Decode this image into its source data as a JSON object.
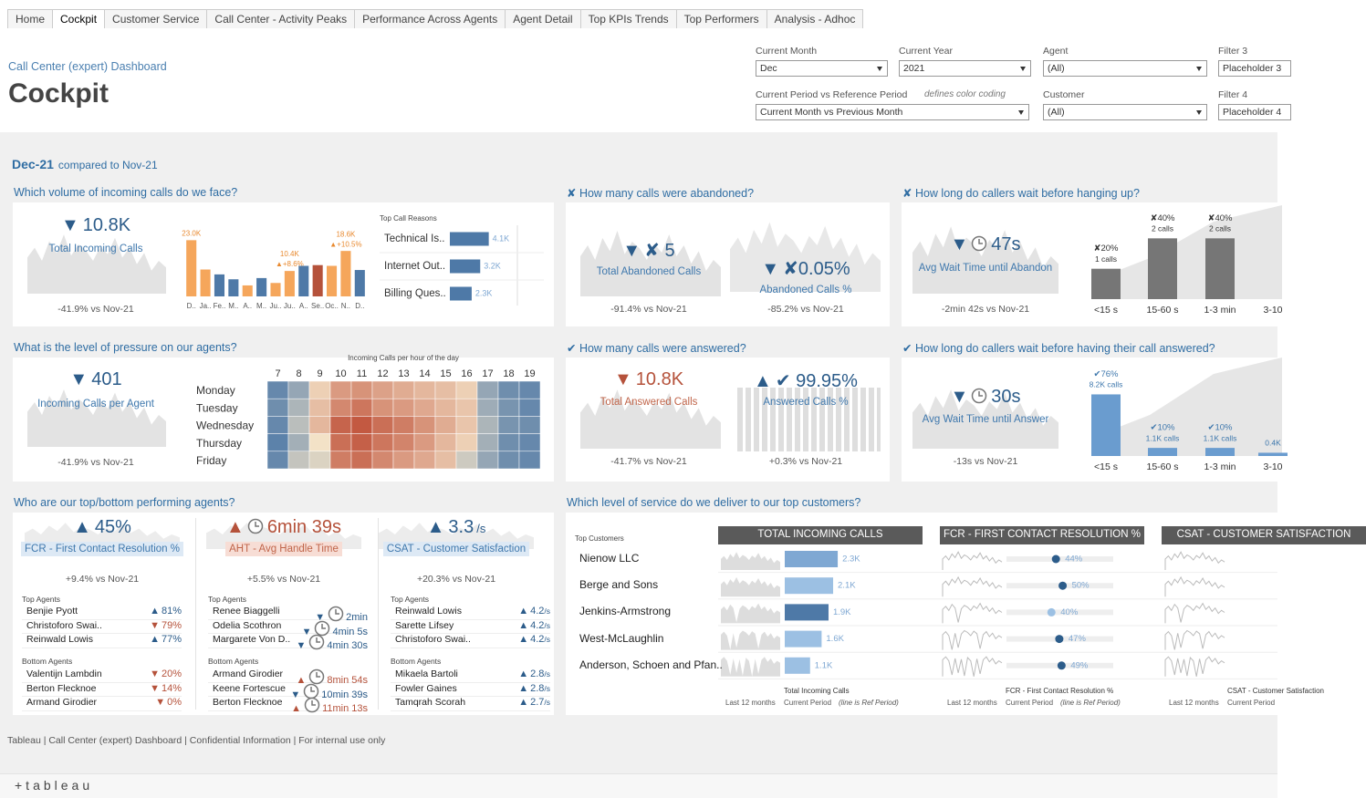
{
  "tabs": [
    "Home",
    "Cockpit",
    "Customer Service",
    "Call Center - Activity Peaks",
    "Performance Across Agents",
    "Agent Detail",
    "Top KPIs Trends",
    "Top Performers",
    "Analysis - Adhoc"
  ],
  "active_tab": 1,
  "header": {
    "subtitle": "Call Center (expert) Dashboard",
    "title": "Cockpit"
  },
  "filters": [
    {
      "label": "Current Month",
      "value": "Dec"
    },
    {
      "label": "Current Year",
      "value": "2021"
    },
    {
      "label": "Agent",
      "value": "(All)"
    },
    {
      "label": "Filter 3",
      "value": "Placeholder 3"
    },
    {
      "label": "Current Period vs Reference Period",
      "value": "Current Month vs Previous Month",
      "note": "defines color coding"
    },
    {
      "label": "Customer",
      "value": "(All)"
    },
    {
      "label": "Filter 4",
      "value": "Placeholder 4"
    }
  ],
  "period": {
    "current": "Dec-21",
    "compared": "compared to Nov-21"
  },
  "panels": {
    "volume": {
      "title": "Which volume of incoming calls do we face?",
      "kpi": {
        "arrow": "▼",
        "value": "10.8K",
        "label": "Total Incoming Calls",
        "delta": "-41.9% vs Nov-21",
        "color": "#2c5c8a"
      },
      "monthly": {
        "type": "bar",
        "categories": [
          "D..",
          "Ja..",
          "Fe..",
          "M..",
          "A..",
          "M..",
          "Ju..",
          "Ju..",
          "A..",
          "Se..",
          "Oc..",
          "N..",
          "D.."
        ],
        "values": [
          23000,
          11000,
          9000,
          7000,
          4500,
          7500,
          5500,
          10400,
          12500,
          12800,
          12500,
          18600,
          10800
        ],
        "value_labels": [
          "23.0K",
          null,
          null,
          null,
          null,
          null,
          null,
          "10.4K",
          null,
          null,
          null,
          "18.6K",
          null
        ],
        "change_labels": [
          null,
          null,
          null,
          null,
          null,
          null,
          null,
          "▲+8.6%",
          null,
          null,
          null,
          "▲+10.5%",
          null
        ],
        "colors": [
          "#f5a65b",
          "#f5a65b",
          "#4e79a7",
          "#4e79a7",
          "#f5a65b",
          "#4e79a7",
          "#f5a65b",
          "#f5a65b",
          "#4e79a7",
          "#b5523b",
          "#f5a65b",
          "#f5a65b",
          "#4e79a7"
        ],
        "ylim": [
          0,
          25000
        ]
      },
      "reasons": {
        "type": "bar",
        "title": "Top Call Reasons",
        "categories": [
          "Technical Is..",
          "Internet Out..",
          "Billing Ques.."
        ],
        "values": [
          4100,
          3200,
          2300
        ],
        "value_labels": [
          "4.1K",
          "3.2K",
          "2.3K"
        ],
        "color": "#4e79a7",
        "xlim": [
          0,
          10000
        ]
      }
    },
    "pressure": {
      "title": "What is the level of pressure on our agents?",
      "kpi": {
        "arrow": "▼",
        "value": "401",
        "label": "Incoming Calls per Agent",
        "delta": "-41.9% vs Nov-21",
        "color": "#2c5c8a"
      },
      "heatmap": {
        "type": "heatmap",
        "title": "Incoming Calls per hour of the day",
        "x": [
          7,
          8,
          9,
          10,
          11,
          12,
          13,
          14,
          15,
          16,
          17,
          18,
          19
        ],
        "y": [
          "Monday",
          "Tuesday",
          "Wednesday",
          "Thursday",
          "Friday"
        ],
        "values": [
          [
            20,
            30,
            55,
            70,
            72,
            68,
            65,
            62,
            60,
            55,
            30,
            22,
            20
          ],
          [
            22,
            35,
            60,
            75,
            80,
            72,
            70,
            66,
            62,
            58,
            32,
            24,
            20
          ],
          [
            20,
            38,
            62,
            85,
            88,
            82,
            78,
            72,
            65,
            58,
            35,
            24,
            22
          ],
          [
            18,
            33,
            50,
            82,
            86,
            80,
            76,
            70,
            62,
            55,
            33,
            22,
            20
          ],
          [
            20,
            40,
            45,
            78,
            82,
            75,
            70,
            66,
            60,
            42,
            30,
            22,
            20
          ]
        ],
        "color_scale": {
          "domain": [
            15,
            50,
            90
          ],
          "colors": [
            "#4e79a7",
            "#f3e2c7",
            "#c0523a"
          ]
        }
      }
    },
    "abandoned": {
      "title": "✘ How many calls were abandoned?",
      "kpis": [
        {
          "arrow": "▼",
          "value": "✘ 5",
          "label": "Total Abandoned Calls",
          "delta": "-91.4% vs Nov-21",
          "color": "#2c5c8a"
        },
        {
          "arrow": "▼",
          "value": "✘0.05%",
          "label": "Abandoned Calls %",
          "delta": "-85.2% vs Nov-21",
          "color": "#2c5c8a"
        }
      ]
    },
    "answered": {
      "title": "✔ How many calls were answered?",
      "kpis": [
        {
          "arrow": "▼",
          "value": "10.8K",
          "label": "Total Answered Calls",
          "delta": "-41.7% vs Nov-21",
          "color": "#b5523b"
        },
        {
          "arrow": "▲",
          "value": "✔ 99.95%",
          "label": "Answered Calls %",
          "delta": "+0.3% vs Nov-21",
          "color": "#2c5c8a"
        }
      ]
    },
    "wait_abandon": {
      "title": "✘ How long do callers wait before hanging up?",
      "kpi": {
        "arrow": "▼",
        "value": "47s",
        "label": "Avg Wait Time until Abandon",
        "delta": "-2min 42s vs Nov-21",
        "color": "#2c5c8a",
        "clock": true
      },
      "bars": {
        "type": "bar",
        "categories": [
          "<15 s",
          "15-60 s",
          "1-3 min",
          "3-10"
        ],
        "values": [
          20,
          40,
          40,
          null
        ],
        "value_labels": [
          "✘20%",
          "✘40%",
          "✘40%",
          null
        ],
        "count_labels": [
          "1 calls",
          "2 calls",
          "2 calls",
          null
        ],
        "color": "#767676",
        "ylim": [
          0,
          45
        ]
      }
    },
    "wait_answer": {
      "title": "✔ How long do callers wait before having their call answered?",
      "kpi": {
        "arrow": "▼",
        "value": "30s",
        "label": "Avg Wait Time until Answer",
        "delta": "-13s vs Nov-21",
        "color": "#2c5c8a",
        "clock": true
      },
      "bars": {
        "type": "bar",
        "categories": [
          "<15 s",
          "15-60 s",
          "1-3 min",
          "3-10"
        ],
        "values": [
          76,
          10,
          10,
          4
        ],
        "value_labels": [
          "✔76%",
          "✔10%",
          "✔10%",
          null
        ],
        "count_labels": [
          "8.2K calls",
          "1.1K calls",
          "1.1K calls",
          "0.4K"
        ],
        "color": "#6a9ccf",
        "ylim": [
          0,
          90
        ]
      }
    },
    "agents": {
      "title": "Who are our top/bottom performing agents?",
      "top_label": "Top Agents",
      "bottom_label": "Bottom Agents",
      "columns": [
        {
          "kpi": {
            "arrow": "▲",
            "value": "45%",
            "label": "FCR - First Contact Resolution %",
            "delta": "+9.4% vs Nov-21",
            "color": "#2c5c8a"
          },
          "top": [
            {
              "name": "Benjie Pyott",
              "arrow": "▲",
              "value": "81%",
              "color": "#2c5c8a"
            },
            {
              "name": "Christoforo Swai..",
              "arrow": "▼",
              "value": "79%",
              "color": "#b5523b"
            },
            {
              "name": "Reinwald Lowis",
              "arrow": "▲",
              "value": "77%",
              "color": "#2c5c8a"
            }
          ],
          "bottom": [
            {
              "name": "Valentijn Lambdin",
              "arrow": "▼",
              "value": "20%",
              "color": "#b5523b"
            },
            {
              "name": "Berton Flecknoe",
              "arrow": "▼",
              "value": "14%",
              "color": "#b5523b"
            },
            {
              "name": "Armand Girodier",
              "arrow": "▼",
              "value": "0%",
              "color": "#b5523b"
            }
          ]
        },
        {
          "kpi": {
            "arrow": "▲",
            "value": "6min 39s",
            "label": "AHT - Avg Handle Time",
            "delta": "+5.5% vs Nov-21",
            "color": "#b5523b",
            "clock": true
          },
          "clock": true,
          "top": [
            {
              "name": "Renee Biaggelli",
              "arrow": "▼",
              "value": "2min",
              "color": "#2c5c8a"
            },
            {
              "name": "Odelia Scothron",
              "arrow": "▼",
              "value": "4min 5s",
              "color": "#2c5c8a"
            },
            {
              "name": "Margarete Von D..",
              "arrow": "▼",
              "value": "4min 30s",
              "color": "#2c5c8a"
            }
          ],
          "bottom": [
            {
              "name": "Armand Girodier",
              "arrow": "▲",
              "value": "8min 54s",
              "color": "#b5523b"
            },
            {
              "name": "Keene Fortescue",
              "arrow": "▼",
              "value": "10min 39s",
              "color": "#2c5c8a"
            },
            {
              "name": "Berton Flecknoe",
              "arrow": "▲",
              "value": "11min 13s",
              "color": "#b5523b"
            }
          ]
        },
        {
          "kpi": {
            "arrow": "▲",
            "value": "3.3",
            "unit": "/s",
            "label": "CSAT - Customer Satisfaction",
            "delta": "+20.3% vs Nov-21",
            "color": "#2c5c8a"
          },
          "unit": "/s",
          "top": [
            {
              "name": "Reinwald Lowis",
              "arrow": "▲",
              "value": "4.2",
              "color": "#2c5c8a"
            },
            {
              "name": "Sarette Lifsey",
              "arrow": "▲",
              "value": "4.2",
              "color": "#2c5c8a"
            },
            {
              "name": "Christoforo Swai..",
              "arrow": "▲",
              "value": "4.2",
              "color": "#2c5c8a"
            }
          ],
          "bottom": [
            {
              "name": "Mikaela Bartoli",
              "arrow": "▲",
              "value": "2.8",
              "color": "#2c5c8a"
            },
            {
              "name": "Fowler Gaines",
              "arrow": "▲",
              "value": "2.8",
              "color": "#2c5c8a"
            },
            {
              "name": "Tamqrah Scorah",
              "arrow": "▲",
              "value": "2.7",
              "color": "#2c5c8a"
            }
          ]
        }
      ]
    },
    "customers": {
      "title": "Which level of service do we deliver to our top customers?",
      "rows_label": "Top Customers",
      "names": [
        "Nienow LLC",
        "Berge and Sons",
        "Jenkins-Armstrong",
        "West-McLaughlin",
        "Anderson, Schoen and Pfan.."
      ],
      "columns": [
        {
          "header": "TOTAL INCOMING CALLS",
          "caption": "Total Incoming Calls"
        },
        {
          "header": "FCR - FIRST CONTACT RESOLUTION %",
          "caption": "FCR - First Contact Resolution %"
        },
        {
          "header": "CSAT - CUSTOMER SATISFACTION",
          "caption": "CSAT - Customer Satisfaction"
        }
      ],
      "legend": [
        "Last 12 months",
        "Current Period",
        "(line is Ref Period)"
      ],
      "calls": {
        "type": "bar",
        "values": [
          2300,
          2100,
          1900,
          1600,
          1100
        ],
        "value_labels": [
          "2.3K",
          "2.1K",
          "1.9K",
          "1.6K",
          "1.1K"
        ],
        "colors": [
          "#7fa8d3",
          "#9cc0e3",
          "#4e79a7",
          "#9cc0e3",
          "#9cc0e3"
        ],
        "xlim": [
          0,
          4000
        ]
      },
      "fcr": {
        "type": "dot",
        "values": [
          44,
          50,
          40,
          47,
          49
        ],
        "value_labels": [
          "44%",
          "50%",
          "40%",
          "47%",
          "49%"
        ],
        "colors": [
          "#2c5c8a",
          "#2c5c8a",
          "#9cc0e3",
          "#2c5c8a",
          "#2c5c8a"
        ],
        "xlim": [
          0,
          95
        ]
      }
    }
  },
  "footer": "Tableau | Call Center (expert) Dashboard | Confidential Information | For internal use only",
  "logo": "+tableau"
}
